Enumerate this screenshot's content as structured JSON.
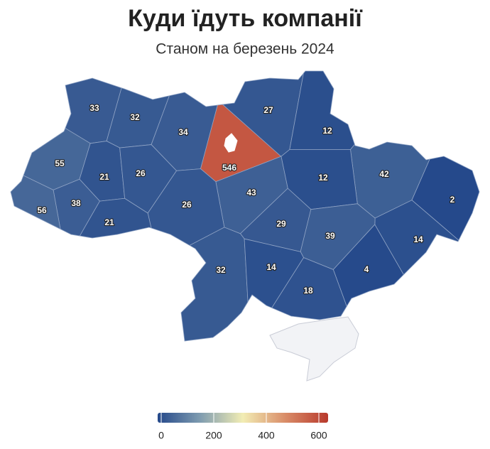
{
  "chart_data": {
    "type": "choropleth",
    "title": "Куди їдуть компанії",
    "subtitle": "Станом на березень 2024",
    "values": [
      33,
      32,
      34,
      546,
      27,
      12,
      42,
      2,
      14,
      12,
      43,
      55,
      21,
      26,
      26,
      38,
      56,
      21,
      29,
      39,
      4,
      32,
      14,
      18
    ],
    "colorscale": [
      "#24488a",
      "#7f9cb0",
      "#f2edb4",
      "#d98c68",
      "#b8392c"
    ],
    "range": [
      0,
      600
    ],
    "ticks": [
      0,
      200,
      400,
      600
    ]
  }
}
